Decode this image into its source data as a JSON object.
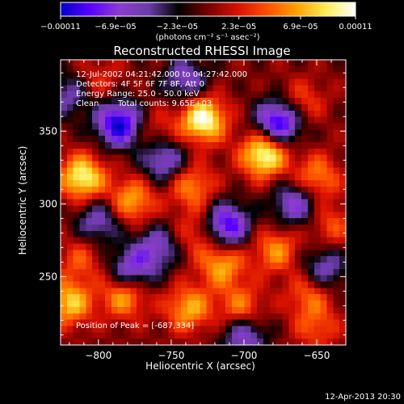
{
  "chart_data": {
    "type": "heatmap",
    "title": "Reconstructed RHESSI Image",
    "xlabel": "Heliocentric X (arcsec)",
    "ylabel": "Heliocentric Y (arcsec)",
    "xlim": [
      -826,
      -630
    ],
    "ylim": [
      203,
      399
    ],
    "x_ticks": [
      -800,
      -750,
      -700,
      -650
    ],
    "y_ticks": [
      250,
      300,
      350
    ],
    "x_tick_labels": [
      "−800",
      "−750",
      "−700",
      "−650"
    ],
    "y_tick_labels": [
      "250",
      "300",
      "350"
    ],
    "colorbar": {
      "min": -0.00011,
      "max": 0.00011,
      "ticks": [
        -0.00011,
        -6.9e-05,
        -2.3e-05,
        2.3e-05,
        6.9e-05,
        0.00011
      ],
      "tick_labels": [
        "−0.00011",
        "−6.9e−05",
        "−2.3e−05",
        "2.3e−05",
        "6.9e−05",
        "0.00011"
      ],
      "units_label": "(photons cm⁻² s⁻¹ asec⁻²)",
      "colormap": [
        "#0000c8",
        "#5a00ff",
        "#8c3cd0",
        "#6a3ca8",
        "#000000",
        "#780000",
        "#d81000",
        "#ff5000",
        "#ffa000",
        "#ffee55",
        "#ffffff"
      ]
    },
    "peak_blobs": [
      {
        "x": -811,
        "y": 318,
        "value": 0.0001
      },
      {
        "x": -728,
        "y": 358,
        "value": 0.00011
      },
      {
        "x": -686,
        "y": 334,
        "value": 0.00011
      },
      {
        "x": -777,
        "y": 302,
        "value": 7e-05
      },
      {
        "x": -736,
        "y": 312,
        "value": 6e-05
      },
      {
        "x": -732,
        "y": 280,
        "value": 4e-05
      },
      {
        "x": -782,
        "y": 238,
        "value": 8e-05
      },
      {
        "x": -738,
        "y": 228,
        "value": 7e-05
      },
      {
        "x": -702,
        "y": 228,
        "value": 6e-05
      },
      {
        "x": -715,
        "y": 258,
        "value": 7e-05
      },
      {
        "x": -678,
        "y": 268,
        "value": 6e-05
      },
      {
        "x": -650,
        "y": 318,
        "value": 6e-05
      },
      {
        "x": -655,
        "y": 238,
        "value": 5e-05
      },
      {
        "x": -820,
        "y": 232,
        "value": 8e-05
      },
      {
        "x": -812,
        "y": 262,
        "value": 4e-05
      },
      {
        "x": -760,
        "y": 350,
        "value": 3e-05
      },
      {
        "x": -660,
        "y": 370,
        "value": 4e-05
      },
      {
        "x": -640,
        "y": 285,
        "value": 4e-05
      },
      {
        "x": -800,
        "y": 385,
        "value": 3e-05
      },
      {
        "x": -650,
        "y": 215,
        "value": 4e-05
      }
    ],
    "trough_blobs": [
      {
        "x": -786,
        "y": 355,
        "value": -0.00011
      },
      {
        "x": -712,
        "y": 285,
        "value": -0.0001
      },
      {
        "x": -778,
        "y": 253,
        "value": -8e-05
      },
      {
        "x": -676,
        "y": 356,
        "value": -0.00011
      },
      {
        "x": -700,
        "y": 210,
        "value": -7e-05
      },
      {
        "x": -755,
        "y": 330,
        "value": -7e-05
      },
      {
        "x": -665,
        "y": 300,
        "value": -7e-05
      },
      {
        "x": -800,
        "y": 288,
        "value": -6e-05
      },
      {
        "x": -740,
        "y": 385,
        "value": -6e-05
      },
      {
        "x": -820,
        "y": 375,
        "value": -5e-05
      },
      {
        "x": -760,
        "y": 270,
        "value": -6e-05
      },
      {
        "x": -645,
        "y": 255,
        "value": -6e-05
      }
    ],
    "overlay": {
      "line1": "12-Jul-2002 04:21:42.000 to 04:27:42.000",
      "line2": "Detectors: 4F 5F 6F 7F 8F, Att 0",
      "line3": "Energy Range: 25.0 - 50.0 keV",
      "line4_method": "Clean",
      "line4_counts": "Total counts: 9.65E+03",
      "peak_label": "Position of Peak = [-687,334]"
    },
    "timestamp": "12-Apr-2013 20:30"
  }
}
